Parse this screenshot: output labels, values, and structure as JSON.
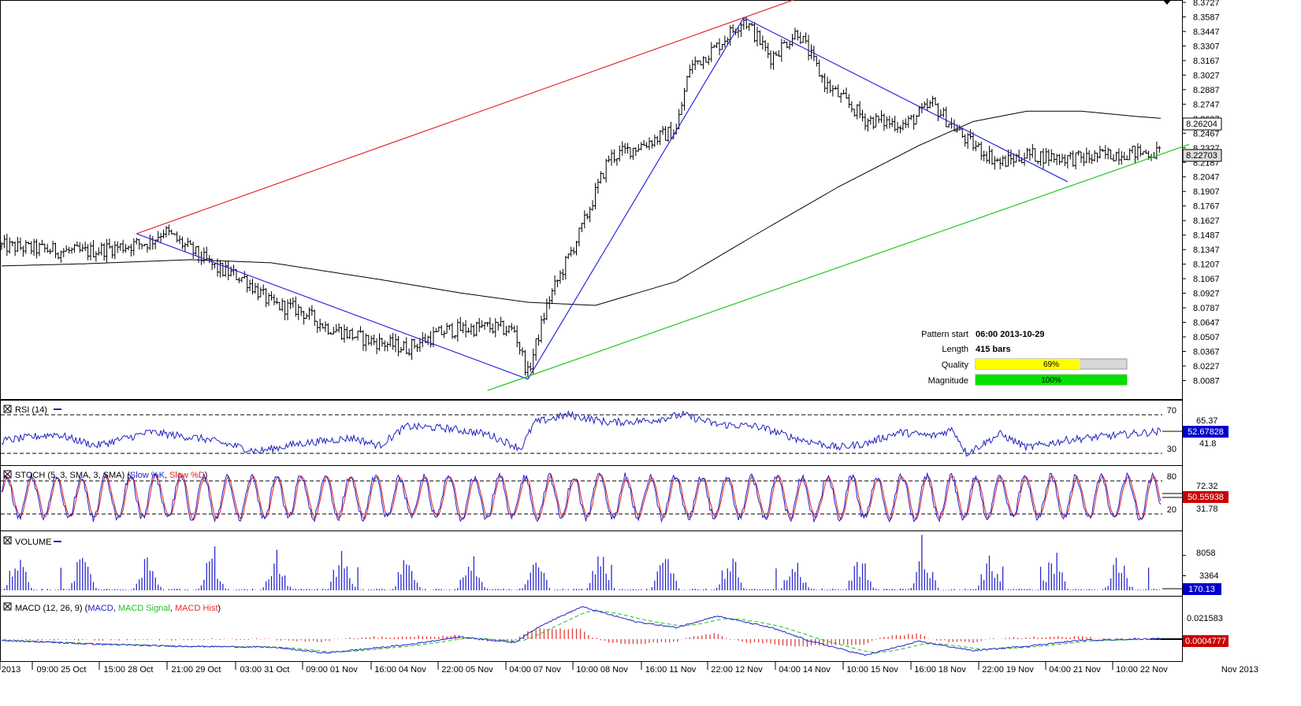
{
  "chart_data": {
    "type": "line",
    "instrument_pattern": {
      "pattern_start_label": "Pattern start",
      "pattern_start_value": "06:00 2013-10-29",
      "length_label": "Length",
      "length_value": "415 bars",
      "quality_label": "Quality",
      "quality_value": "69%",
      "quality_fraction": 0.69,
      "magnitude_label": "Magnitude",
      "magnitude_value": "100%",
      "magnitude_fraction": 1.0
    },
    "price": {
      "ylim": [
        8.0007,
        8.3727
      ],
      "ticks": [
        "8.3727",
        "8.3587",
        "8.3447",
        "8.3307",
        "8.3167",
        "8.3027",
        "8.2887",
        "8.2747",
        "8.2607",
        "8.2467",
        "8.2327",
        "8.2187",
        "8.2047",
        "8.1907",
        "8.1767",
        "8.1627",
        "8.1487",
        "8.1347",
        "8.1207",
        "8.1067",
        "8.0927",
        "8.0787",
        "8.0647",
        "8.0507",
        "8.0367",
        "8.0227",
        "8.0087"
      ],
      "last_price": "8.22703",
      "ma_value": "8.26204",
      "keypoints": [
        [
          0,
          8.138
        ],
        [
          60,
          8.132
        ],
        [
          110,
          8.142
        ],
        [
          120,
          8.153
        ],
        [
          160,
          8.116
        ],
        [
          180,
          8.107
        ],
        [
          200,
          8.082
        ],
        [
          220,
          8.077
        ],
        [
          240,
          8.061
        ],
        [
          270,
          8.048
        ],
        [
          300,
          8.04
        ],
        [
          330,
          8.057
        ],
        [
          360,
          8.06
        ],
        [
          380,
          8.057
        ],
        [
          390,
          8.015
        ],
        [
          405,
          8.085
        ],
        [
          430,
          8.155
        ],
        [
          450,
          8.223
        ],
        [
          475,
          8.236
        ],
        [
          500,
          8.25
        ],
        [
          510,
          8.31
        ],
        [
          530,
          8.33
        ],
        [
          550,
          8.357
        ],
        [
          570,
          8.32
        ],
        [
          590,
          8.345
        ],
        [
          610,
          8.295
        ],
        [
          640,
          8.26
        ],
        [
          670,
          8.255
        ],
        [
          690,
          8.275
        ],
        [
          700,
          8.26
        ],
        [
          715,
          8.24
        ],
        [
          740,
          8.218
        ],
        [
          760,
          8.226
        ],
        [
          800,
          8.222
        ],
        [
          830,
          8.228
        ],
        [
          860,
          8.228
        ]
      ],
      "ma_keypoints": [
        [
          0,
          8.119
        ],
        [
          60,
          8.121
        ],
        [
          140,
          8.125
        ],
        [
          200,
          8.122
        ],
        [
          280,
          8.106
        ],
        [
          340,
          8.093
        ],
        [
          390,
          8.084
        ],
        [
          440,
          8.081
        ],
        [
          500,
          8.104
        ],
        [
          560,
          8.15
        ],
        [
          620,
          8.195
        ],
        [
          680,
          8.235
        ],
        [
          720,
          8.258
        ],
        [
          760,
          8.268
        ],
        [
          800,
          8.268
        ],
        [
          840,
          8.263
        ],
        [
          860,
          8.261
        ]
      ]
    },
    "pattern_lines": [
      {
        "color": "#e53030",
        "from": [
          100,
          8.15
        ],
        "to": [
          550,
          8.358
        ],
        "extend_to": 605
      },
      {
        "color": "#2a2ae0",
        "points": [
          [
            100,
            8.15
          ],
          [
            390,
            8.01
          ],
          [
            550,
            8.358
          ],
          [
            790,
            8.2
          ]
        ]
      },
      {
        "color": "#22c522",
        "from": [
          360,
          7.999
        ],
        "to": [
          880,
          8.236
        ]
      }
    ],
    "rsi": {
      "label": "RSI (14)",
      "levels": [
        "70",
        "30"
      ],
      "level_values": [
        70,
        30
      ],
      "scale_ticks": [
        "65.37",
        "41.8"
      ],
      "last": "52.67828",
      "ylim": [
        23,
        78
      ],
      "keypoints": [
        [
          0,
          43
        ],
        [
          40,
          50
        ],
        [
          70,
          38
        ],
        [
          110,
          52
        ],
        [
          150,
          45
        ],
        [
          190,
          32
        ],
        [
          220,
          40
        ],
        [
          260,
          46
        ],
        [
          280,
          38
        ],
        [
          300,
          58
        ],
        [
          330,
          56
        ],
        [
          360,
          50
        ],
        [
          385,
          35
        ],
        [
          395,
          62
        ],
        [
          420,
          70
        ],
        [
          450,
          62
        ],
        [
          480,
          64
        ],
        [
          505,
          70
        ],
        [
          530,
          60
        ],
        [
          560,
          58
        ],
        [
          590,
          45
        ],
        [
          620,
          36
        ],
        [
          640,
          40
        ],
        [
          665,
          52
        ],
        [
          690,
          48
        ],
        [
          705,
          55
        ],
        [
          715,
          30
        ],
        [
          740,
          50
        ],
        [
          760,
          36
        ],
        [
          790,
          44
        ],
        [
          820,
          48
        ],
        [
          860,
          53
        ]
      ]
    },
    "stoch": {
      "label": "STOCH (5, 3, SMA, 3, SMA)",
      "slow_k": "Slow %K",
      "slow_d": "Slow %D",
      "levels": [
        "80",
        "20"
      ],
      "level_values": [
        80,
        20
      ],
      "scale_ticks": [
        "72.32",
        "31.78"
      ],
      "last": "50.55938",
      "ylim": [
        0,
        100
      ]
    },
    "volume": {
      "label": "VOLUME",
      "scale_ticks": [
        "8058",
        "3364"
      ],
      "scale_values": [
        8058,
        3364
      ],
      "last": "170.13",
      "ylim": [
        0,
        12000
      ]
    },
    "macd": {
      "label": "MACD (12, 26, 9)",
      "series_macd": "MACD",
      "series_signal": "MACD Signal",
      "series_hist": "MACD Hist",
      "scale_ticks": [
        "0.021583"
      ],
      "last": "0.0004777",
      "ylim": [
        -0.018,
        0.03
      ],
      "keypoints": [
        [
          0,
          -0.001
        ],
        [
          60,
          -0.004
        ],
        [
          120,
          -0.006
        ],
        [
          200,
          -0.007
        ],
        [
          240,
          -0.012
        ],
        [
          300,
          -0.005
        ],
        [
          340,
          0.002
        ],
        [
          380,
          -0.003
        ],
        [
          400,
          0.012
        ],
        [
          430,
          0.028
        ],
        [
          470,
          0.015
        ],
        [
          500,
          0.01
        ],
        [
          530,
          0.02
        ],
        [
          570,
          0.01
        ],
        [
          600,
          -0.002
        ],
        [
          640,
          -0.014
        ],
        [
          680,
          -0.002
        ],
        [
          720,
          -0.01
        ],
        [
          760,
          -0.006
        ],
        [
          800,
          -0.001
        ],
        [
          860,
          0.0004777
        ]
      ]
    },
    "x_labels": [
      "2013",
      "09:00 25 Oct",
      "15:00 28 Oct",
      "21:00 29 Oct",
      "03:00 31 Oct",
      "09:00 01 Nov",
      "16:00 04 Nov",
      "22:00 05 Nov",
      "04:00 07 Nov",
      "10:00 08 Nov",
      "16:00 11 Nov",
      "22:00 12 Nov",
      "04:00 14 Nov",
      "10:00 15 Nov",
      "16:00 18 Nov",
      "22:00 19 Nov",
      "04:00 21 Nov",
      "10:00 22 Nov"
    ],
    "x_label_last": "Nov 2013",
    "bar_count": 860,
    "colors": {
      "price": "#000000",
      "ma": "#000000",
      "rsi": "#2020c0",
      "stoch_k": "#2020d0",
      "stoch_d": "#e02020",
      "volume": "#2a2ad0",
      "macd": "#2020d0",
      "signal": "#20c020",
      "hist": "#e03030",
      "quality_bar": "#ffff00",
      "magnitude_bar": "#00e000"
    }
  }
}
